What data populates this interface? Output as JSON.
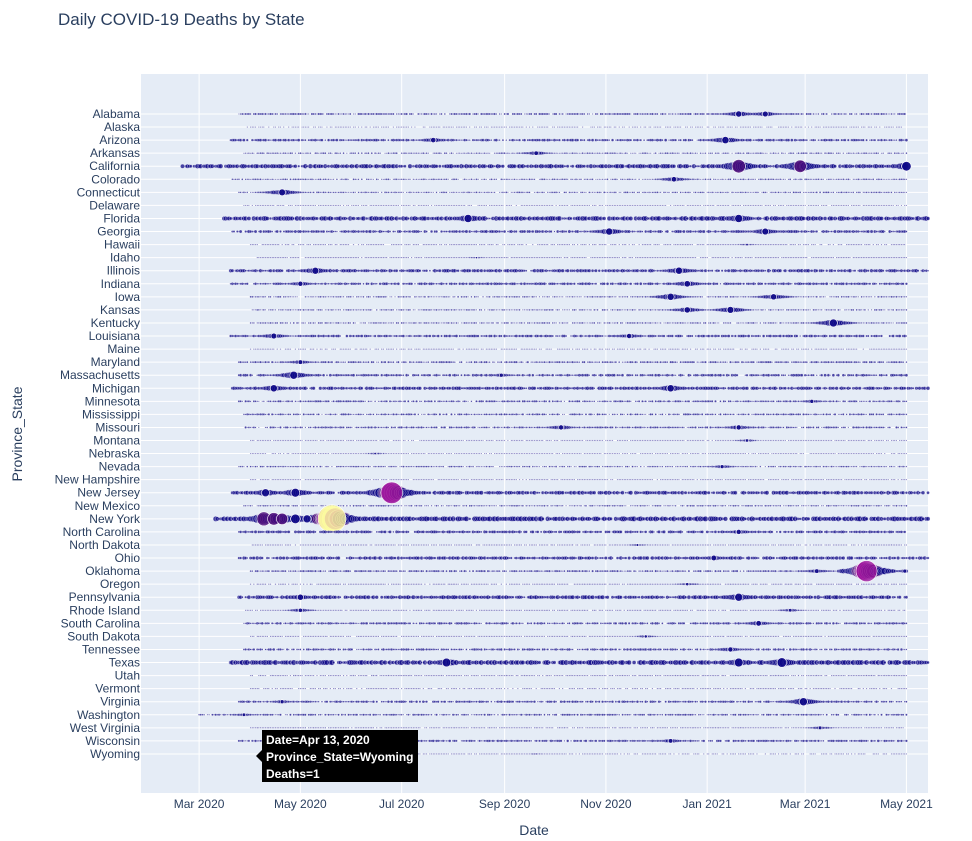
{
  "chart_data": {
    "type": "scatter",
    "title": "Daily COVID-19 Deaths by State",
    "xlabel": "Date",
    "ylabel": "Province_State",
    "xlim": [
      "2020-01-26",
      "2021-05-14"
    ],
    "x_ticks": [
      {
        "date": "2020-03-01",
        "label": "Mar 2020"
      },
      {
        "date": "2020-05-01",
        "label": "May 2020"
      },
      {
        "date": "2020-07-01",
        "label": "Jul 2020"
      },
      {
        "date": "2020-09-01",
        "label": "Sep 2020"
      },
      {
        "date": "2020-11-01",
        "label": "Nov 2020"
      },
      {
        "date": "2021-01-01",
        "label": "Jan 2021"
      },
      {
        "date": "2021-03-01",
        "label": "Mar 2021"
      },
      {
        "date": "2021-05-01",
        "label": "May 2021"
      }
    ],
    "grid": true,
    "colors": {
      "plot_bg": "#e5ecf6",
      "grid": "#ffffff",
      "text": "#2a3f5f",
      "point_dark": "#0d0887",
      "point_mid": "#9c179e",
      "point_high": "#fdfd9d",
      "tooltip_bg": "#000000"
    },
    "states": [
      "Alabama",
      "Alaska",
      "Arizona",
      "Arkansas",
      "California",
      "Colorado",
      "Connecticut",
      "Delaware",
      "Florida",
      "Georgia",
      "Hawaii",
      "Idaho",
      "Illinois",
      "Indiana",
      "Iowa",
      "Kansas",
      "Kentucky",
      "Louisiana",
      "Maine",
      "Maryland",
      "Massachusetts",
      "Michigan",
      "Minnesota",
      "Mississippi",
      "Missouri",
      "Montana",
      "Nebraska",
      "Nevada",
      "New Hampshire",
      "New Jersey",
      "New Mexico",
      "New York",
      "North Carolina",
      "North Dakota",
      "Ohio",
      "Oklahoma",
      "Oregon",
      "Pennsylvania",
      "Rhode Island",
      "South Carolina",
      "South Dakota",
      "Tennessee",
      "Texas",
      "Utah",
      "Vermont",
      "Virginia",
      "Washington",
      "West Virginia",
      "Wisconsin",
      "Wyoming"
    ],
    "series": [
      {
        "state": "Alabama",
        "start": "2020-03-25",
        "end": "2021-05-01",
        "typical": 15,
        "peaks": [
          {
            "date": "2021-01-20",
            "deaths": 150
          },
          {
            "date": "2021-02-05",
            "deaths": 130
          }
        ]
      },
      {
        "state": "Alaska",
        "start": "2020-03-28",
        "end": "2021-04-28",
        "typical": 1,
        "peaks": []
      },
      {
        "state": "Arizona",
        "start": "2020-03-20",
        "end": "2021-05-01",
        "typical": 25,
        "peaks": [
          {
            "date": "2021-01-12",
            "deaths": 200
          },
          {
            "date": "2020-07-20",
            "deaths": 110
          }
        ]
      },
      {
        "state": "Arkansas",
        "start": "2020-03-28",
        "end": "2021-05-01",
        "typical": 10,
        "peaks": [
          {
            "date": "2020-09-20",
            "deaths": 80
          }
        ]
      },
      {
        "state": "California",
        "start": "2020-02-20",
        "end": "2021-05-01",
        "typical": 60,
        "peaks": [
          {
            "date": "2021-01-20",
            "deaths": 700
          },
          {
            "date": "2021-02-26",
            "deaths": 600
          },
          {
            "date": "2021-05-01",
            "deaths": 350
          }
        ]
      },
      {
        "state": "Colorado",
        "start": "2020-03-20",
        "end": "2021-05-01",
        "typical": 10,
        "peaks": [
          {
            "date": "2020-12-12",
            "deaths": 110
          }
        ]
      },
      {
        "state": "Connecticut",
        "start": "2020-03-25",
        "end": "2021-05-01",
        "typical": 10,
        "peaks": [
          {
            "date": "2020-04-20",
            "deaths": 180
          }
        ]
      },
      {
        "state": "Delaware",
        "start": "2020-03-28",
        "end": "2021-05-01",
        "typical": 2,
        "peaks": []
      },
      {
        "state": "Florida",
        "start": "2020-03-15",
        "end": "2021-05-14",
        "typical": 70,
        "peaks": [
          {
            "date": "2020-08-10",
            "deaths": 250
          },
          {
            "date": "2021-01-20",
            "deaths": 250
          }
        ]
      },
      {
        "state": "Georgia",
        "start": "2020-03-20",
        "end": "2021-05-01",
        "typical": 30,
        "peaks": [
          {
            "date": "2020-11-03",
            "deaths": 200
          },
          {
            "date": "2021-02-05",
            "deaths": 180
          }
        ]
      },
      {
        "state": "Hawaii",
        "start": "2020-04-01",
        "end": "2021-04-30",
        "typical": 1,
        "peaks": [
          {
            "date": "2021-01-25",
            "deaths": 25
          }
        ]
      },
      {
        "state": "Idaho",
        "start": "2020-04-05",
        "end": "2021-05-01",
        "typical": 3,
        "peaks": [
          {
            "date": "2020-08-15",
            "deaths": 20
          }
        ]
      },
      {
        "state": "Illinois",
        "start": "2020-03-20",
        "end": "2021-05-14",
        "typical": 40,
        "peaks": [
          {
            "date": "2020-05-10",
            "deaths": 190
          },
          {
            "date": "2020-12-15",
            "deaths": 200
          }
        ]
      },
      {
        "state": "Indiana",
        "start": "2020-03-20",
        "end": "2021-05-01",
        "typical": 25,
        "peaks": [
          {
            "date": "2020-05-01",
            "deaths": 100
          },
          {
            "date": "2020-12-20",
            "deaths": 160
          }
        ]
      },
      {
        "state": "Iowa",
        "start": "2020-04-01",
        "end": "2021-05-01",
        "typical": 10,
        "peaks": [
          {
            "date": "2020-12-10",
            "deaths": 200
          },
          {
            "date": "2021-02-10",
            "deaths": 150
          }
        ]
      },
      {
        "state": "Kansas",
        "start": "2020-04-01",
        "end": "2021-05-01",
        "typical": 10,
        "peaks": [
          {
            "date": "2020-12-20",
            "deaths": 150
          },
          {
            "date": "2021-01-15",
            "deaths": 180
          }
        ]
      },
      {
        "state": "Kentucky",
        "start": "2020-04-01",
        "end": "2021-05-01",
        "typical": 10,
        "peaks": [
          {
            "date": "2021-03-18",
            "deaths": 250
          }
        ]
      },
      {
        "state": "Louisiana",
        "start": "2020-03-20",
        "end": "2021-05-01",
        "typical": 25,
        "peaks": [
          {
            "date": "2020-11-15",
            "deaths": 100
          },
          {
            "date": "2020-04-15",
            "deaths": 130
          }
        ]
      },
      {
        "state": "Maine",
        "start": "2020-04-01",
        "end": "2021-05-01",
        "typical": 1,
        "peaks": []
      },
      {
        "state": "Maryland",
        "start": "2020-03-25",
        "end": "2021-05-01",
        "typical": 15,
        "peaks": [
          {
            "date": "2020-05-01",
            "deaths": 80
          }
        ]
      },
      {
        "state": "Massachusetts",
        "start": "2020-03-25",
        "end": "2021-05-01",
        "typical": 25,
        "peaks": [
          {
            "date": "2020-04-27",
            "deaths": 250
          },
          {
            "date": "2020-08-30",
            "deaths": 60
          }
        ]
      },
      {
        "state": "Michigan",
        "start": "2020-03-20",
        "end": "2021-05-14",
        "typical": 40,
        "peaks": [
          {
            "date": "2020-04-15",
            "deaths": 200
          },
          {
            "date": "2020-12-10",
            "deaths": 200
          }
        ]
      },
      {
        "state": "Minnesota",
        "start": "2020-03-25",
        "end": "2021-05-01",
        "typical": 15,
        "peaks": [
          {
            "date": "2021-03-05",
            "deaths": 60
          }
        ]
      },
      {
        "state": "Mississippi",
        "start": "2020-03-28",
        "end": "2021-05-01",
        "typical": 15,
        "peaks": []
      },
      {
        "state": "Missouri",
        "start": "2020-03-28",
        "end": "2021-05-01",
        "typical": 15,
        "peaks": [
          {
            "date": "2020-10-05",
            "deaths": 100
          },
          {
            "date": "2021-01-20",
            "deaths": 100
          }
        ]
      },
      {
        "state": "Montana",
        "start": "2020-04-01",
        "end": "2021-05-01",
        "typical": 3,
        "peaks": [
          {
            "date": "2021-01-25",
            "deaths": 40
          }
        ]
      },
      {
        "state": "Nebraska",
        "start": "2020-04-01",
        "end": "2021-05-01",
        "typical": 3,
        "peaks": [
          {
            "date": "2020-06-15",
            "deaths": 25
          }
        ]
      },
      {
        "state": "Nevada",
        "start": "2020-03-25",
        "end": "2021-05-01",
        "typical": 10,
        "peaks": [
          {
            "date": "2021-01-10",
            "deaths": 60
          }
        ]
      },
      {
        "state": "New Hampshire",
        "start": "2020-04-01",
        "end": "2021-05-01",
        "typical": 2,
        "peaks": [
          {
            "date": "2020-05-20",
            "deaths": 15
          }
        ]
      },
      {
        "state": "New Jersey",
        "start": "2020-03-20",
        "end": "2021-05-14",
        "typical": 50,
        "peaks": [
          {
            "date": "2020-06-25",
            "deaths": 1800
          },
          {
            "date": "2020-04-28",
            "deaths": 300
          },
          {
            "date": "2020-04-10",
            "deaths": 250
          }
        ]
      },
      {
        "state": "New Mexico",
        "start": "2020-03-28",
        "end": "2021-05-01",
        "typical": 10,
        "peaks": []
      },
      {
        "state": "New York",
        "start": "2020-03-10",
        "end": "2021-05-14",
        "typical": 80,
        "peaks": [
          {
            "date": "2020-05-20",
            "deaths": 3000
          },
          {
            "date": "2020-04-09",
            "deaths": 750
          },
          {
            "date": "2020-04-15",
            "deaths": 600
          },
          {
            "date": "2020-04-20",
            "deaths": 500
          },
          {
            "date": "2020-04-28",
            "deaths": 350
          },
          {
            "date": "2020-05-05",
            "deaths": 250
          }
        ]
      },
      {
        "state": "North Carolina",
        "start": "2020-03-25",
        "end": "2021-05-01",
        "typical": 30,
        "peaks": [
          {
            "date": "2021-01-20",
            "deaths": 100
          }
        ]
      },
      {
        "state": "North Dakota",
        "start": "2020-04-01",
        "end": "2021-05-01",
        "typical": 5,
        "peaks": [
          {
            "date": "2020-11-20",
            "deaths": 30
          }
        ]
      },
      {
        "state": "Ohio",
        "start": "2020-03-25",
        "end": "2021-05-14",
        "typical": 40,
        "peaks": [
          {
            "date": "2021-01-05",
            "deaths": 120
          }
        ]
      },
      {
        "state": "Oklahoma",
        "start": "2020-04-01",
        "end": "2021-05-01",
        "typical": 15,
        "peaks": [
          {
            "date": "2021-04-07",
            "deaths": 1700
          },
          {
            "date": "2021-03-08",
            "deaths": 80
          },
          {
            "date": "2021-04-30",
            "deaths": 60
          }
        ]
      },
      {
        "state": "Oregon",
        "start": "2020-04-01",
        "end": "2021-05-01",
        "typical": 5,
        "peaks": [
          {
            "date": "2020-12-20",
            "deaths": 40
          }
        ]
      },
      {
        "state": "Pennsylvania",
        "start": "2020-03-25",
        "end": "2021-05-01",
        "typical": 50,
        "peaks": [
          {
            "date": "2021-01-20",
            "deaths": 250
          },
          {
            "date": "2020-05-01",
            "deaths": 150
          }
        ]
      },
      {
        "state": "Rhode Island",
        "start": "2020-03-28",
        "end": "2021-05-01",
        "typical": 5,
        "peaks": [
          {
            "date": "2020-05-01",
            "deaths": 70
          },
          {
            "date": "2021-02-20",
            "deaths": 50
          }
        ]
      },
      {
        "state": "South Carolina",
        "start": "2020-03-28",
        "end": "2021-05-01",
        "typical": 20,
        "peaks": [
          {
            "date": "2021-02-01",
            "deaths": 120
          }
        ]
      },
      {
        "state": "South Dakota",
        "start": "2020-04-01",
        "end": "2021-05-01",
        "typical": 5,
        "peaks": [
          {
            "date": "2020-11-25",
            "deaths": 40
          }
        ]
      },
      {
        "state": "Tennessee",
        "start": "2020-03-28",
        "end": "2021-05-01",
        "typical": 20,
        "peaks": [
          {
            "date": "2021-01-15",
            "deaths": 100
          }
        ]
      },
      {
        "state": "Texas",
        "start": "2020-03-20",
        "end": "2021-05-14",
        "typical": 80,
        "peaks": [
          {
            "date": "2020-07-28",
            "deaths": 300
          },
          {
            "date": "2021-01-20",
            "deaths": 300
          },
          {
            "date": "2021-02-15",
            "deaths": 350
          }
        ]
      },
      {
        "state": "Utah",
        "start": "2020-04-01",
        "end": "2021-05-01",
        "typical": 5,
        "peaks": []
      },
      {
        "state": "Vermont",
        "start": "2020-04-01",
        "end": "2021-05-01",
        "typical": 1,
        "peaks": []
      },
      {
        "state": "Virginia",
        "start": "2020-03-25",
        "end": "2021-05-01",
        "typical": 20,
        "peaks": [
          {
            "date": "2021-02-28",
            "deaths": 250
          },
          {
            "date": "2020-04-20",
            "deaths": 60
          }
        ]
      },
      {
        "state": "Washington",
        "start": "2020-03-01",
        "end": "2021-05-01",
        "typical": 15,
        "peaks": [
          {
            "date": "2020-03-28",
            "deaths": 50
          }
        ]
      },
      {
        "state": "West Virginia",
        "start": "2020-04-01",
        "end": "2021-05-01",
        "typical": 5,
        "peaks": [
          {
            "date": "2021-03-10",
            "deaths": 50
          }
        ]
      },
      {
        "state": "Wisconsin",
        "start": "2020-03-25",
        "end": "2021-05-01",
        "typical": 20,
        "peaks": [
          {
            "date": "2020-12-10",
            "deaths": 80
          }
        ]
      },
      {
        "state": "Wyoming",
        "start": "2020-04-13",
        "end": "2021-05-01",
        "typical": 1,
        "peaks": [
          {
            "date": "2020-09-20",
            "deaths": 15
          }
        ]
      }
    ],
    "tooltip": {
      "date_line": "Date=Apr 13, 2020",
      "state_line": "Province_State=Wyoming",
      "deaths_line": "Deaths=1",
      "date": "2020-04-13",
      "state": "Wyoming"
    }
  }
}
